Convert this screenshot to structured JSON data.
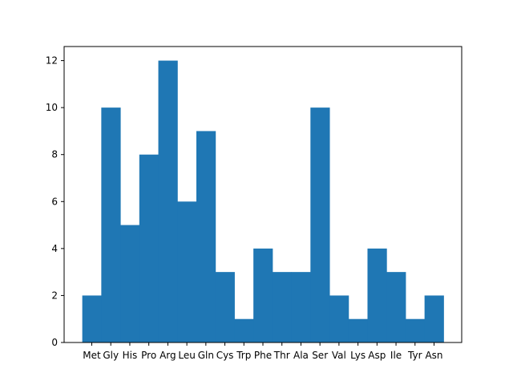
{
  "chart_data": {
    "type": "bar",
    "title": "",
    "xlabel": "",
    "ylabel": "",
    "categories": [
      "Met",
      "Gly",
      "His",
      "Pro",
      "Arg",
      "Leu",
      "Gln",
      "Cys",
      "Trp",
      "Phe",
      "Thr",
      "Ala",
      "Ser",
      "Val",
      "Lys",
      "Asp",
      "Ile",
      "Tyr",
      "Asn"
    ],
    "values": [
      2,
      10,
      5,
      8,
      12,
      6,
      9,
      3,
      1,
      4,
      3,
      3,
      10,
      2,
      1,
      4,
      3,
      1,
      2
    ],
    "ylim": [
      0,
      12.6
    ],
    "yticks": [
      0,
      2,
      4,
      6,
      8,
      10,
      12
    ],
    "grid": false,
    "legend": "none",
    "bar_color": "#1f77b4"
  }
}
